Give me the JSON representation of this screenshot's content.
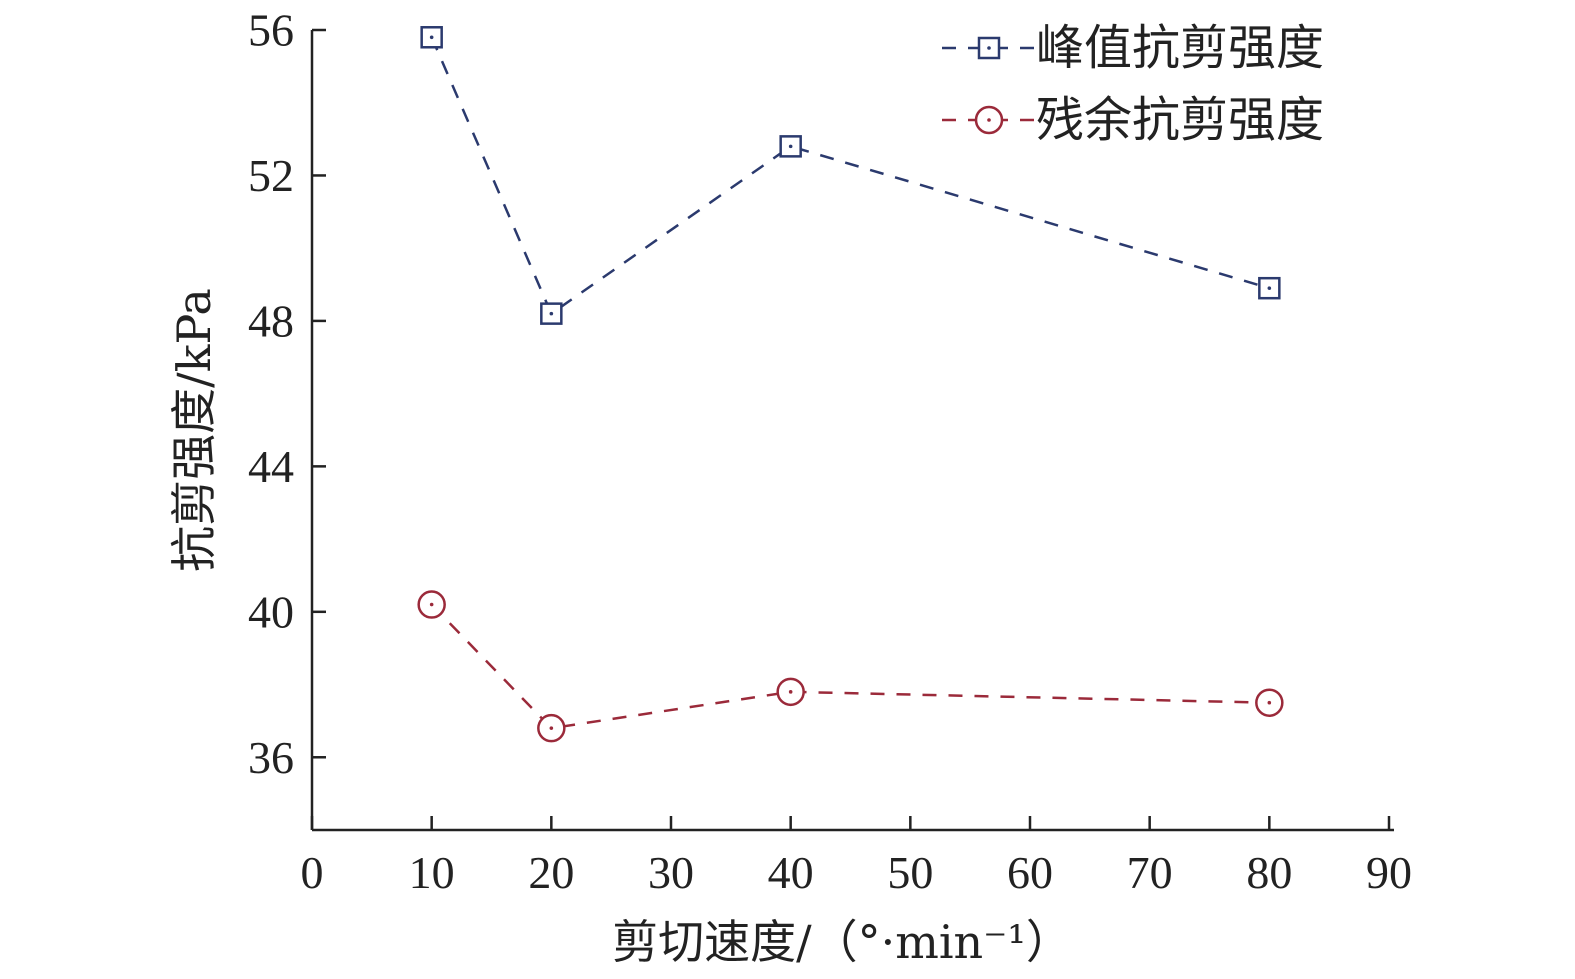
{
  "chart_data": {
    "type": "line",
    "title": "",
    "xlabel": "剪切速度/（°·min⁻¹）",
    "ylabel": "抗剪强度/kPa",
    "xlim": [
      0,
      90
    ],
    "ylim": [
      34,
      56
    ],
    "xticks": [
      0,
      10,
      20,
      30,
      40,
      50,
      60,
      70,
      80,
      90
    ],
    "yticks": [
      36,
      40,
      44,
      48,
      52,
      56
    ],
    "grid": false,
    "legend_position": "top-right",
    "x": [
      10,
      20,
      40,
      80
    ],
    "series": [
      {
        "name": "峰值抗剪强度",
        "marker": "square",
        "color": "#2b3a6e",
        "values": [
          55.8,
          48.2,
          52.8,
          48.9
        ]
      },
      {
        "name": "残余抗剪强度",
        "marker": "circle",
        "color": "#9b2a3a",
        "values": [
          40.2,
          36.8,
          37.8,
          37.5
        ]
      }
    ]
  }
}
